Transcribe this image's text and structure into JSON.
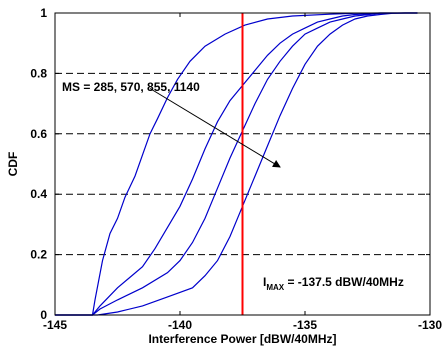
{
  "chart_data": {
    "type": "line",
    "title": "",
    "xlabel": "Interference Power [dBW/40MHz]",
    "ylabel": "CDF",
    "xlim": [
      -145,
      -130
    ],
    "ylim": [
      0,
      1
    ],
    "x_ticks": [
      -145,
      -140,
      -135,
      -130
    ],
    "x_tick_labels": [
      "-145",
      "-140",
      "-135",
      "-130"
    ],
    "y_ticks": [
      0,
      0.2,
      0.4,
      0.6,
      0.8,
      1
    ],
    "y_tick_labels": [
      "0",
      "0.2",
      "0.4",
      "0.6",
      "0.8",
      "1"
    ],
    "grid": "y-only, dashed",
    "series_color": "#0000cc",
    "threshold_color": "#ff0000",
    "series": [
      {
        "x": [
          -145,
          -143.5,
          -143.4,
          -143.1,
          -142.8,
          -142.5,
          -142.2,
          -141.8,
          -141.5,
          -141.2,
          -140.9,
          -140.5,
          -140.1,
          -139.6,
          -139.0,
          -138.2,
          -137.4,
          -136.5,
          -135.5,
          -134.0,
          -133.0,
          -132.0,
          -131.0,
          -130.5
        ],
        "y": [
          0,
          0,
          0.05,
          0.18,
          0.27,
          0.32,
          0.39,
          0.46,
          0.53,
          0.6,
          0.65,
          0.72,
          0.78,
          0.84,
          0.89,
          0.93,
          0.96,
          0.98,
          0.99,
          0.996,
          0.999,
          1.0,
          1.0,
          1.0
        ]
      },
      {
        "x": [
          -145,
          -143.5,
          -143.2,
          -142.5,
          -141.5,
          -141.0,
          -140.5,
          -140.0,
          -139.5,
          -139.0,
          -138.5,
          -138.0,
          -137.5,
          -137.0,
          -136.5,
          -136.0,
          -135.5,
          -135.0,
          -134.5,
          -134.0,
          -133.5,
          -133.0,
          -132.0,
          -131.0,
          -130.5
        ],
        "y": [
          0,
          0,
          0.03,
          0.09,
          0.16,
          0.22,
          0.29,
          0.36,
          0.45,
          0.55,
          0.64,
          0.71,
          0.76,
          0.81,
          0.86,
          0.9,
          0.93,
          0.95,
          0.97,
          0.98,
          0.99,
          0.995,
          1.0,
          1.0,
          1.0
        ]
      },
      {
        "x": [
          -145,
          -143.5,
          -143.2,
          -142.5,
          -141.5,
          -140.5,
          -140.0,
          -139.5,
          -139.0,
          -138.5,
          -138.0,
          -137.5,
          -137.0,
          -136.5,
          -136.0,
          -135.5,
          -135.0,
          -134.5,
          -134.0,
          -133.5,
          -133.0,
          -132.0,
          -131.0,
          -130.5
        ],
        "y": [
          0,
          0,
          0.02,
          0.05,
          0.09,
          0.14,
          0.18,
          0.24,
          0.32,
          0.42,
          0.52,
          0.61,
          0.7,
          0.78,
          0.84,
          0.89,
          0.93,
          0.95,
          0.97,
          0.98,
          0.99,
          0.999,
          1.0,
          1.0
        ]
      },
      {
        "x": [
          -145,
          -143.3,
          -142.5,
          -141.5,
          -140.5,
          -139.5,
          -139.0,
          -138.5,
          -138.0,
          -137.5,
          -137.0,
          -136.5,
          -136.0,
          -135.5,
          -135.0,
          -134.5,
          -134.0,
          -133.5,
          -133.0,
          -132.5,
          -132.0,
          -131.5,
          -131.0,
          -130.5
        ],
        "y": [
          0,
          0,
          0.01,
          0.03,
          0.06,
          0.09,
          0.13,
          0.18,
          0.26,
          0.36,
          0.46,
          0.56,
          0.66,
          0.75,
          0.83,
          0.89,
          0.93,
          0.96,
          0.98,
          0.99,
          0.995,
          0.999,
          1.0,
          1.0
        ]
      }
    ],
    "threshold": {
      "x": -137.5
    },
    "annotations": {
      "ms_label": "MS = 285, 570, 855, 1140",
      "arrow": {
        "from": [
          -141.2,
          0.75
        ],
        "to": [
          -136.0,
          0.49
        ]
      },
      "imax_prefix": "I",
      "imax_subscript": "MAX",
      "imax_rest": " = -137.5 dBW/40MHz"
    }
  }
}
